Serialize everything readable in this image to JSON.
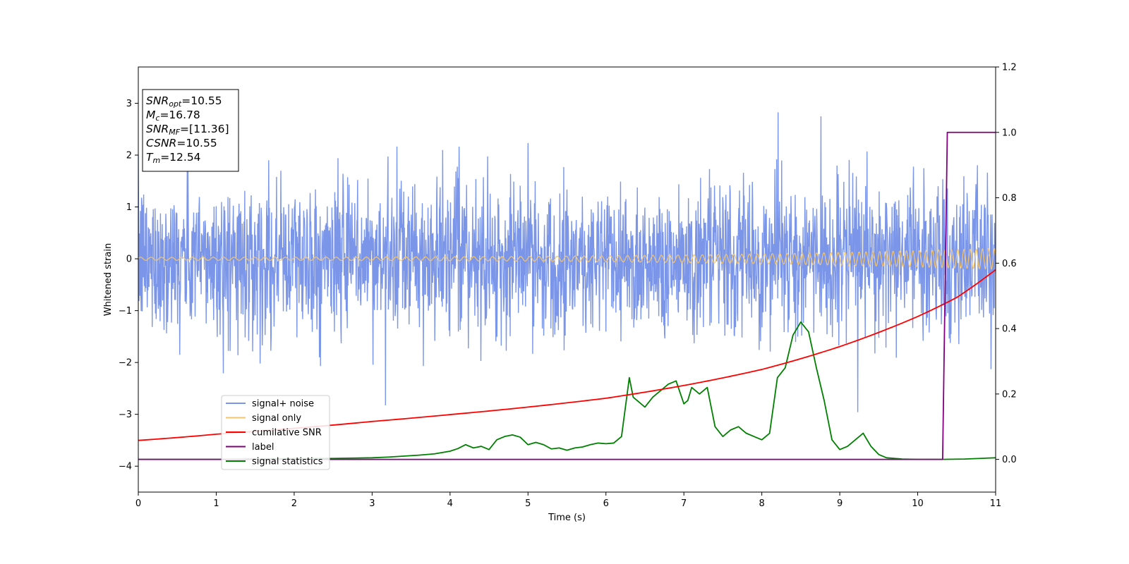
{
  "chart_data": {
    "type": "line",
    "xlabel": "Time (s)",
    "ylabel": "Whitened strain",
    "xlim": [
      0,
      11
    ],
    "ylim_left": [
      -4.5,
      3.7
    ],
    "ylim_right": [
      -0.1,
      1.2
    ],
    "x_ticks": [
      "0",
      "1",
      "2",
      "3",
      "4",
      "5",
      "6",
      "7",
      "8",
      "9",
      "10",
      "11"
    ],
    "y_ticks_left": [
      "−4",
      "−3",
      "−2",
      "−1",
      "0",
      "1",
      "2",
      "3"
    ],
    "y_ticks_right": [
      "0.0",
      "0.2",
      "0.4",
      "0.6",
      "0.8",
      "1.0",
      "1.2"
    ],
    "legend_position": "lower-left",
    "info_box": {
      "position": "top-left",
      "lines": [
        {
          "main": "SNR",
          "sub": "opt",
          "value": "=10.55"
        },
        {
          "main": "M",
          "sub": "c",
          "value": "=16.78"
        },
        {
          "main": "SNR",
          "sub": "MF",
          "value": "=[11.36]"
        },
        {
          "main": "CSNR",
          "sub": "",
          "value": "=10.55"
        },
        {
          "main": "T",
          "sub": "m",
          "value": "=12.54"
        }
      ]
    },
    "series": [
      {
        "name": "signal+ noise",
        "axis": "left",
        "color": "#7b96e8",
        "description": "whitened noise, std ~0.7, peaks to ~±3",
        "std": 0.72,
        "peak_max": 3.35,
        "peak_min": -3.2
      },
      {
        "name": "signal only",
        "axis": "left",
        "color": "#f4c56f",
        "description": "chirp oscillation, amplitude grows from ~0.03 to ~0.2",
        "amplitude_start": 0.03,
        "amplitude_end": 0.2
      },
      {
        "name": "cumilative SNR",
        "axis": "right",
        "color": "#ff0000",
        "x": [
          0,
          1,
          2,
          3,
          4,
          5,
          6,
          7,
          8,
          9,
          10,
          10.5,
          11
        ],
        "y": [
          0.058,
          0.077,
          0.095,
          0.116,
          0.137,
          0.16,
          0.187,
          0.226,
          0.275,
          0.345,
          0.437,
          0.495,
          0.58
        ]
      },
      {
        "name": "label",
        "axis": "right",
        "color": "#800080",
        "x": [
          0,
          10.32,
          10.38,
          11
        ],
        "y": [
          0.0,
          0.0,
          1.0,
          1.0
        ]
      },
      {
        "name": "signal statistics",
        "axis": "right",
        "color": "#008000",
        "x": [
          0,
          0.5,
          1,
          1.5,
          2,
          2.5,
          3,
          3.2,
          3.4,
          3.6,
          3.8,
          4.0,
          4.1,
          4.2,
          4.3,
          4.4,
          4.5,
          4.6,
          4.7,
          4.8,
          4.9,
          5.0,
          5.1,
          5.2,
          5.3,
          5.4,
          5.5,
          5.6,
          5.7,
          5.8,
          5.9,
          6.0,
          6.1,
          6.2,
          6.3,
          6.35,
          6.4,
          6.5,
          6.6,
          6.7,
          6.8,
          6.9,
          7.0,
          7.05,
          7.1,
          7.2,
          7.3,
          7.4,
          7.5,
          7.6,
          7.7,
          7.8,
          7.9,
          8.0,
          8.1,
          8.2,
          8.3,
          8.4,
          8.5,
          8.6,
          8.7,
          8.8,
          8.9,
          9.0,
          9.1,
          9.2,
          9.3,
          9.4,
          9.5,
          9.6,
          9.8,
          10.0,
          10.3,
          10.6,
          11.0
        ],
        "y": [
          0.0,
          0.0,
          0.0,
          0.001,
          0.002,
          0.003,
          0.005,
          0.007,
          0.01,
          0.013,
          0.017,
          0.025,
          0.033,
          0.045,
          0.035,
          0.04,
          0.03,
          0.06,
          0.07,
          0.075,
          0.068,
          0.045,
          0.052,
          0.045,
          0.032,
          0.035,
          0.028,
          0.035,
          0.038,
          0.045,
          0.05,
          0.048,
          0.05,
          0.07,
          0.25,
          0.19,
          0.18,
          0.16,
          0.19,
          0.21,
          0.23,
          0.24,
          0.17,
          0.18,
          0.22,
          0.2,
          0.22,
          0.1,
          0.07,
          0.09,
          0.1,
          0.08,
          0.07,
          0.06,
          0.08,
          0.25,
          0.28,
          0.38,
          0.42,
          0.39,
          0.28,
          0.18,
          0.06,
          0.03,
          0.04,
          0.06,
          0.08,
          0.04,
          0.015,
          0.005,
          0.001,
          0.0,
          0.0,
          0.001,
          0.005
        ]
      }
    ]
  }
}
